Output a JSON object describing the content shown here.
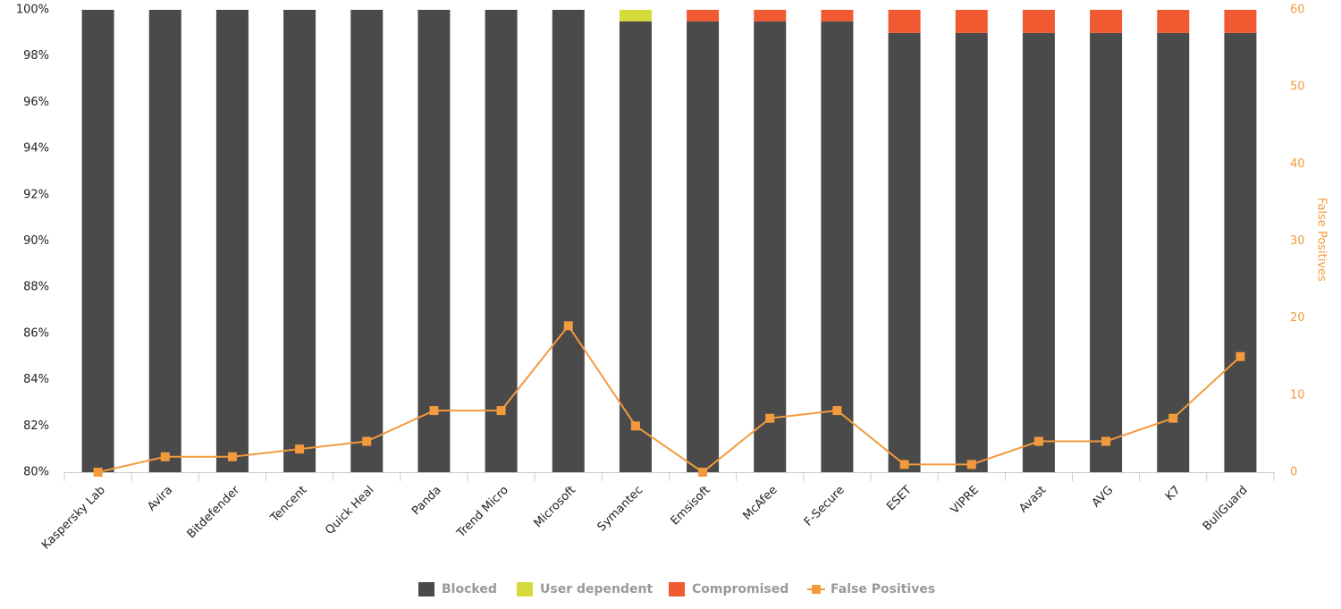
{
  "chart_data": {
    "type": "bar",
    "stacked": true,
    "categories": [
      "Kaspersky Lab",
      "Avira",
      "Bitdefender",
      "Tencent",
      "Quick Heal",
      "Panda",
      "Trend Micro",
      "Microsoft",
      "Symantec",
      "Emsisoft",
      "McAfee",
      "F-Secure",
      "ESET",
      "VIPRE",
      "Avast",
      "AVG",
      "K7",
      "BullGuard"
    ],
    "series": [
      {
        "name": "Blocked",
        "color": "#4a4a4a",
        "values": [
          100,
          100,
          100,
          100,
          100,
          100,
          100,
          100,
          99.5,
          99.5,
          99.5,
          99.5,
          99,
          99,
          99,
          99,
          99,
          99
        ]
      },
      {
        "name": "User dependent",
        "color": "#d5db3a",
        "values": [
          0,
          0,
          0,
          0,
          0,
          0,
          0,
          0,
          0.5,
          0,
          0,
          0,
          0,
          0,
          0,
          0,
          0,
          0
        ]
      },
      {
        "name": "Compromised",
        "color": "#f05a30",
        "values": [
          0,
          0,
          0,
          0,
          0,
          0,
          0,
          0,
          0,
          0.5,
          0.5,
          0.5,
          1,
          1,
          1,
          1,
          1,
          1
        ]
      },
      {
        "name": "False Positives",
        "color": "#f39a3c",
        "type": "line",
        "axis": "y2",
        "values": [
          0,
          2,
          2,
          3,
          4,
          8,
          8,
          19,
          6,
          0,
          7,
          8,
          1,
          1,
          4,
          4,
          7,
          15
        ]
      }
    ],
    "ylim": [
      80,
      100
    ],
    "yticks": [
      {
        "value": 80,
        "label": "80%"
      },
      {
        "value": 82,
        "label": "82%"
      },
      {
        "value": 84,
        "label": "84%"
      },
      {
        "value": 86,
        "label": "86%"
      },
      {
        "value": 88,
        "label": "88%"
      },
      {
        "value": 90,
        "label": "90%"
      },
      {
        "value": 92,
        "label": "92%"
      },
      {
        "value": 94,
        "label": "94%"
      },
      {
        "value": 96,
        "label": "96%"
      },
      {
        "value": 98,
        "label": "98%"
      },
      {
        "value": 100,
        "label": "100%"
      }
    ],
    "y2lim": [
      0,
      60
    ],
    "y2ticks": [
      0,
      10,
      20,
      30,
      40,
      50,
      60
    ],
    "y2label": "False Positives"
  }
}
